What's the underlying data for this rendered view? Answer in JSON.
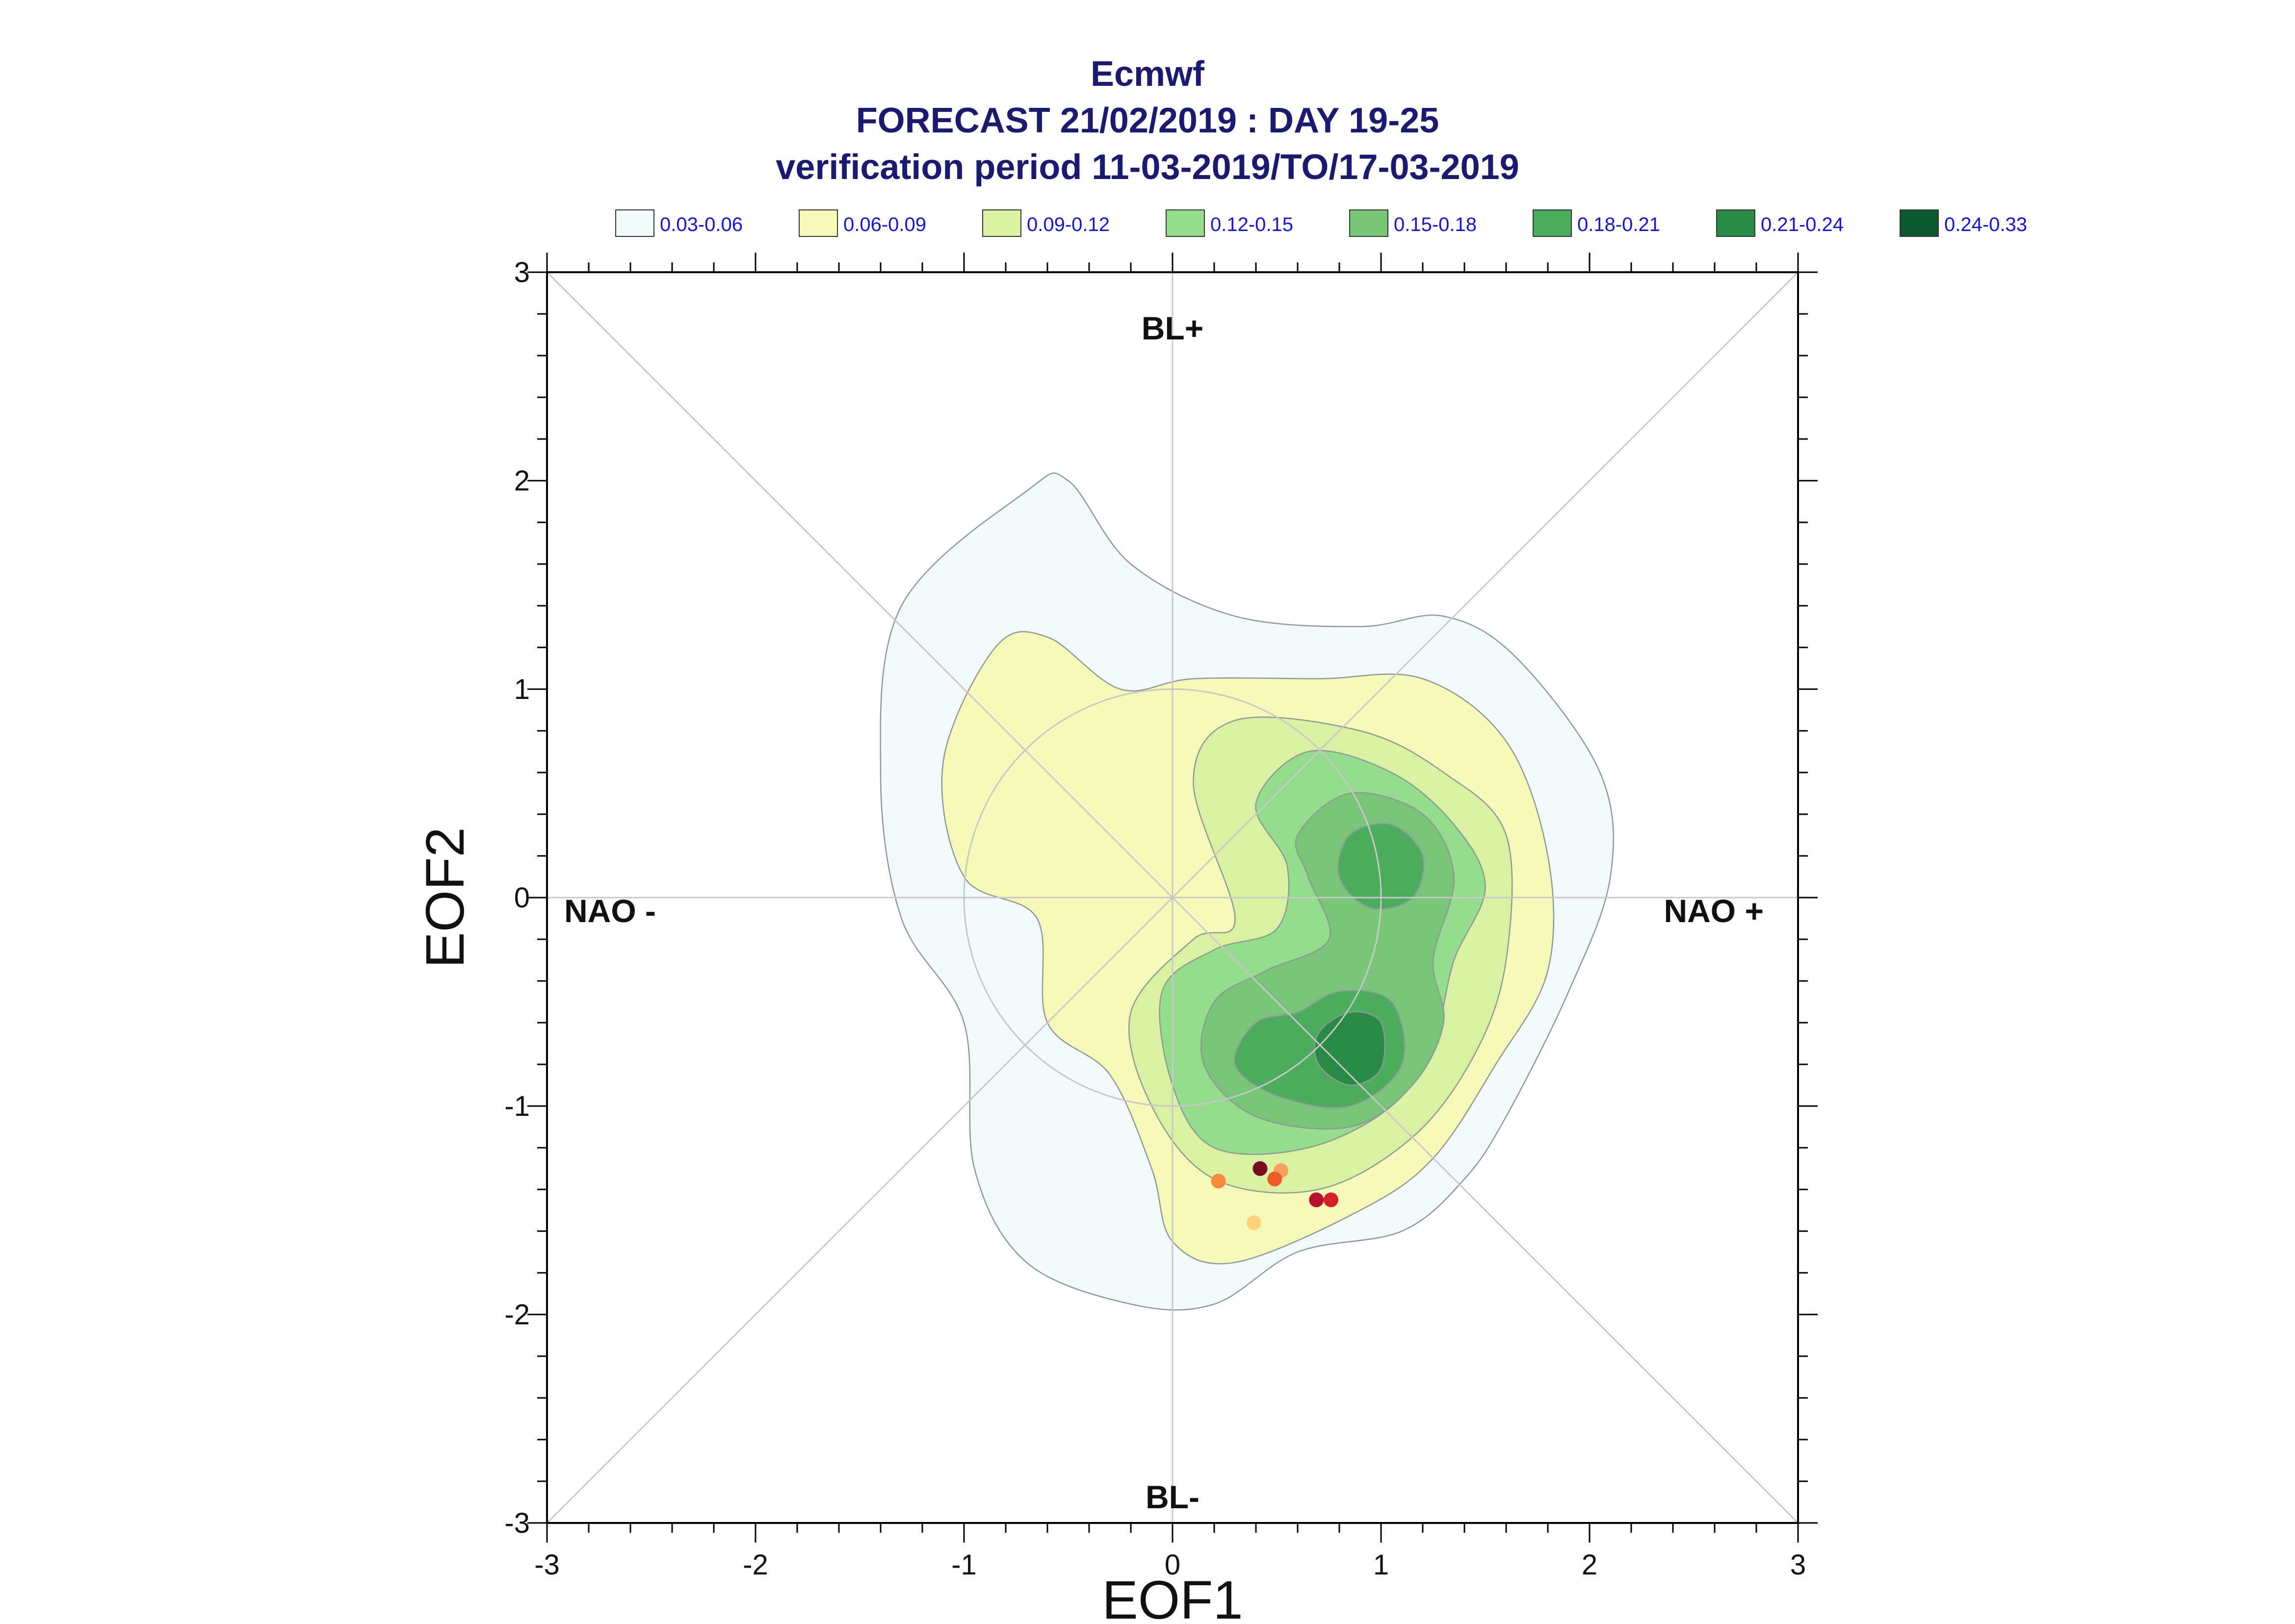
{
  "chart_data": {
    "type": "contour",
    "title": "Ecmwf",
    "subtitle": "FORECAST 21/02/2019 : DAY 19-25",
    "subtitle2": "verification period 11-03-2019/TO/17-03-2019",
    "xlabel": "EOF1",
    "ylabel": "EOF2",
    "xlim": [
      -3,
      3
    ],
    "ylim": [
      -3,
      3
    ],
    "xticks": [
      "-3",
      "-2",
      "-1",
      "0",
      "1",
      "2",
      "3"
    ],
    "yticks": [
      "-3",
      "-2",
      "-1",
      "0",
      "1",
      "2",
      "3"
    ],
    "region_labels": {
      "top": "BL+",
      "bottom": "BL-",
      "left": "NAO -",
      "right": "NAO +"
    },
    "legend": [
      {
        "label": "0.03-0.06",
        "color": "#f4f9fc"
      },
      {
        "label": "0.06-0.09",
        "color": "#f6fab8"
      },
      {
        "label": "0.09-0.12",
        "color": "#daf0a2"
      },
      {
        "label": "0.12-0.15",
        "color": "#93dd8c"
      },
      {
        "label": "0.15-0.18",
        "color": "#78c57a"
      },
      {
        "label": "0.18-0.21",
        "color": "#4aac5c"
      },
      {
        "label": "0.21-0.24",
        "color": "#278b45"
      },
      {
        "label": "0.24-0.33",
        "color": "#0d5a30"
      }
    ],
    "levels": [
      {
        "polygon": [
          [
            -0.7,
            1.95
          ],
          [
            -0.5,
            2.0
          ],
          [
            -0.2,
            1.6
          ],
          [
            0.3,
            1.35
          ],
          [
            0.9,
            1.3
          ],
          [
            1.3,
            1.35
          ],
          [
            1.65,
            1.15
          ],
          [
            2.05,
            0.6
          ],
          [
            2.1,
            0.1
          ],
          [
            1.9,
            -0.45
          ],
          [
            1.6,
            -1.05
          ],
          [
            1.4,
            -1.35
          ],
          [
            1.1,
            -1.6
          ],
          [
            0.6,
            -1.7
          ],
          [
            0.2,
            -1.95
          ],
          [
            -0.2,
            -1.95
          ],
          [
            -0.7,
            -1.75
          ],
          [
            -0.95,
            -1.3
          ],
          [
            -1.0,
            -0.6
          ],
          [
            -1.3,
            -0.1
          ],
          [
            -1.4,
            0.6
          ],
          [
            -1.3,
            1.4
          ]
        ]
      },
      {
        "polygon": [
          [
            -1.1,
            0.65
          ],
          [
            -0.85,
            1.2
          ],
          [
            -0.6,
            1.25
          ],
          [
            -0.25,
            1.0
          ],
          [
            0.1,
            1.05
          ],
          [
            0.7,
            1.05
          ],
          [
            1.2,
            1.05
          ],
          [
            1.6,
            0.75
          ],
          [
            1.8,
            0.2
          ],
          [
            1.8,
            -0.35
          ],
          [
            1.55,
            -0.8
          ],
          [
            1.25,
            -1.25
          ],
          [
            0.9,
            -1.5
          ],
          [
            0.3,
            -1.75
          ],
          [
            0.0,
            -1.65
          ],
          [
            -0.1,
            -1.3
          ],
          [
            -0.3,
            -0.85
          ],
          [
            -0.6,
            -0.6
          ],
          [
            -0.65,
            -0.1
          ],
          [
            -1.0,
            0.1
          ]
        ]
      },
      {
        "polygon": [
          [
            0.1,
            0.55
          ],
          [
            0.3,
            0.85
          ],
          [
            0.9,
            0.8
          ],
          [
            1.3,
            0.6
          ],
          [
            1.6,
            0.3
          ],
          [
            1.6,
            -0.3
          ],
          [
            1.45,
            -0.75
          ],
          [
            1.15,
            -1.15
          ],
          [
            0.7,
            -1.4
          ],
          [
            0.2,
            -1.35
          ],
          [
            -0.1,
            -1.0
          ],
          [
            -0.2,
            -0.55
          ],
          [
            0.1,
            -0.2
          ],
          [
            0.3,
            -0.1
          ]
        ]
      },
      {
        "polygon": [
          [
            0.4,
            0.45
          ],
          [
            0.65,
            0.7
          ],
          [
            1.05,
            0.6
          ],
          [
            1.35,
            0.35
          ],
          [
            1.5,
            0.05
          ],
          [
            1.35,
            -0.3
          ],
          [
            1.25,
            -0.7
          ],
          [
            1.05,
            -1.0
          ],
          [
            0.65,
            -1.2
          ],
          [
            0.2,
            -1.2
          ],
          [
            0.0,
            -0.9
          ],
          [
            -0.05,
            -0.45
          ],
          [
            0.2,
            -0.25
          ],
          [
            0.5,
            -0.15
          ],
          [
            0.55,
            0.15
          ]
        ]
      },
      {
        "polygon": [
          [
            0.6,
            0.3
          ],
          [
            0.85,
            0.5
          ],
          [
            1.2,
            0.4
          ],
          [
            1.35,
            0.1
          ],
          [
            1.25,
            -0.3
          ],
          [
            1.3,
            -0.6
          ],
          [
            1.15,
            -0.9
          ],
          [
            0.85,
            -1.1
          ],
          [
            0.4,
            -1.05
          ],
          [
            0.15,
            -0.8
          ],
          [
            0.2,
            -0.5
          ],
          [
            0.45,
            -0.35
          ],
          [
            0.75,
            -0.2
          ],
          [
            0.65,
            0.1
          ]
        ]
      },
      {
        "polygon": [
          [
            0.8,
            0.1
          ],
          [
            0.85,
            0.3
          ],
          [
            1.05,
            0.35
          ],
          [
            1.2,
            0.2
          ],
          [
            1.15,
            0.0
          ],
          [
            0.95,
            -0.05
          ]
        ]
      },
      {
        "polygon": [
          [
            0.4,
            -0.6
          ],
          [
            0.6,
            -0.55
          ],
          [
            0.8,
            -0.45
          ],
          [
            1.05,
            -0.5
          ],
          [
            1.1,
            -0.8
          ],
          [
            0.85,
            -1.0
          ],
          [
            0.5,
            -0.95
          ],
          [
            0.3,
            -0.8
          ]
        ]
      },
      {
        "polygon": [
          [
            0.7,
            -0.65
          ],
          [
            0.85,
            -0.55
          ],
          [
            1.0,
            -0.6
          ],
          [
            1.0,
            -0.82
          ],
          [
            0.85,
            -0.9
          ],
          [
            0.7,
            -0.8
          ]
        ]
      },
      {
        "polygon": []
      }
    ],
    "points": [
      {
        "x": 0.42,
        "y": -1.3,
        "color": "#7a0a1e"
      },
      {
        "x": 0.52,
        "y": -1.31,
        "color": "#f8a05a"
      },
      {
        "x": 0.49,
        "y": -1.35,
        "color": "#ef5a2a"
      },
      {
        "x": 0.22,
        "y": -1.36,
        "color": "#f58a3c"
      },
      {
        "x": 0.69,
        "y": -1.45,
        "color": "#b8102a"
      },
      {
        "x": 0.76,
        "y": -1.45,
        "color": "#d42028"
      },
      {
        "x": 0.39,
        "y": -1.56,
        "color": "#fcd27a"
      }
    ],
    "diagonals": true,
    "grid": false
  }
}
